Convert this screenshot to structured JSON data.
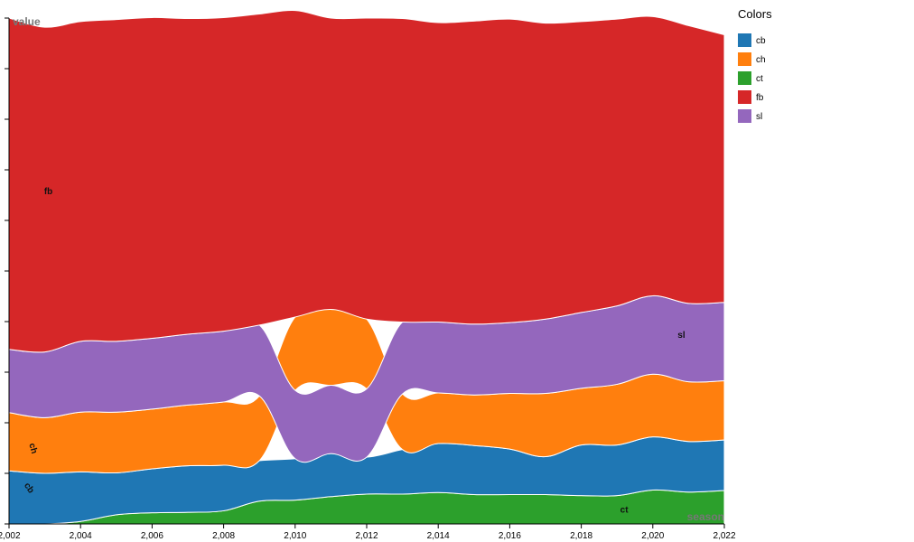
{
  "chart_data": {
    "type": "area",
    "stacking": "stream-ranked",
    "x": [
      2002,
      2003,
      2004,
      2005,
      2006,
      2007,
      2008,
      2009,
      2010,
      2011,
      2012,
      2013,
      2014,
      2015,
      2016,
      2017,
      2018,
      2019,
      2020,
      2021,
      2022
    ],
    "xlabel": "season",
    "ylabel": "value",
    "xlim": [
      2002,
      2022
    ],
    "x_ticks": [
      "2,002",
      "2,004",
      "2,006",
      "2,008",
      "2,010",
      "2,012",
      "2,014",
      "2,016",
      "2,018",
      "2,020",
      "2,022"
    ],
    "grid": false,
    "legend": {
      "title": "Colors",
      "position": "right"
    },
    "series": [
      {
        "name": "ct",
        "color": "#2ca02c",
        "values": [
          0.0,
          0.0,
          0.005,
          0.018,
          0.022,
          0.023,
          0.026,
          0.045,
          0.047,
          0.054,
          0.059,
          0.059,
          0.062,
          0.058,
          0.058,
          0.058,
          0.056,
          0.056,
          0.067,
          0.063,
          0.066
        ]
      },
      {
        "name": "cb",
        "color": "#1f77b4",
        "values": [
          0.105,
          0.1,
          0.098,
          0.083,
          0.087,
          0.092,
          0.09,
          0.08,
          0.082,
          0.085,
          0.073,
          0.088,
          0.097,
          0.097,
          0.09,
          0.075,
          0.1,
          0.1,
          0.105,
          0.1,
          0.1
        ]
      },
      {
        "name": "ch",
        "color": "#ff7f0e",
        "values": [
          0.115,
          0.11,
          0.118,
          0.12,
          0.118,
          0.12,
          0.125,
          0.128,
          0.145,
          0.15,
          0.138,
          0.11,
          0.1,
          0.1,
          0.11,
          0.125,
          0.112,
          0.12,
          0.124,
          0.118,
          0.117
        ]
      },
      {
        "name": "sl",
        "color": "#9467bd",
        "values": [
          0.125,
          0.13,
          0.14,
          0.14,
          0.14,
          0.14,
          0.14,
          0.14,
          0.135,
          0.135,
          0.135,
          0.142,
          0.14,
          0.14,
          0.14,
          0.147,
          0.15,
          0.155,
          0.155,
          0.155,
          0.155
        ]
      },
      {
        "name": "fb",
        "color": "#d62728",
        "values": [
          0.655,
          0.642,
          0.632,
          0.636,
          0.634,
          0.624,
          0.62,
          0.615,
          0.606,
          0.576,
          0.595,
          0.6,
          0.592,
          0.599,
          0.6,
          0.585,
          0.575,
          0.567,
          0.552,
          0.549,
          0.529
        ]
      }
    ],
    "series_labels": [
      {
        "name": "fb",
        "x": 2003.1,
        "y": 0.652
      },
      {
        "name": "sl",
        "x": 2020.8,
        "y": 0.368
      },
      {
        "name": "ct",
        "x": 2019.2,
        "y": 0.022
      },
      {
        "name": "ch",
        "x": 2002.6,
        "y": 0.148,
        "rotate": 75
      },
      {
        "name": "cb",
        "x": 2002.5,
        "y": 0.068,
        "rotate": 55
      }
    ]
  },
  "legend_items": [
    "cb",
    "ch",
    "ct",
    "fb",
    "sl"
  ],
  "colors": {
    "cb": "#1f77b4",
    "ch": "#ff7f0e",
    "ct": "#2ca02c",
    "fb": "#d62728",
    "sl": "#9467bd"
  }
}
